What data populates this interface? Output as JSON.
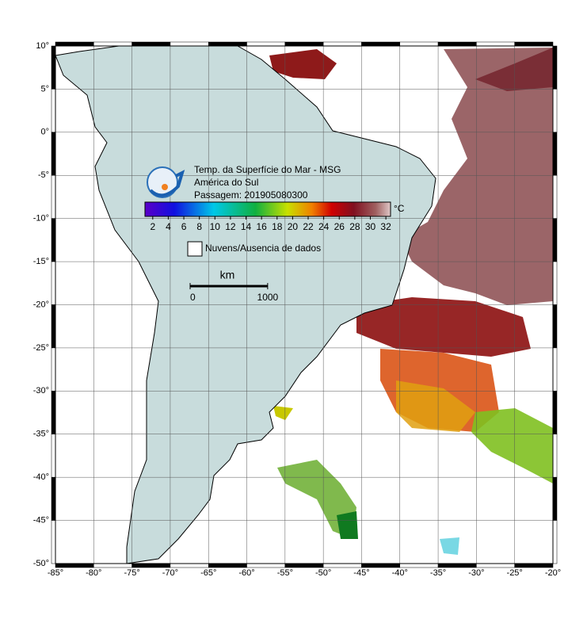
{
  "header": {
    "title_lines": [
      "Temp. da Superfície do Mar - MSG",
      "América do Sul",
      "Passagem: 201905080300"
    ]
  },
  "colorbar": {
    "range": [
      1,
      32.6
    ],
    "ticks": [
      2,
      4,
      6,
      8,
      10,
      12,
      14,
      16,
      18,
      20,
      22,
      24,
      26,
      28,
      30,
      32
    ],
    "unit": "°C"
  },
  "legend": {
    "label": "Nuvens/Ausencia de dados"
  },
  "scale_bar": {
    "unit": "km",
    "ticks": [
      0,
      1000
    ]
  },
  "axes": {
    "xlim": [
      -85,
      -20
    ],
    "ylim": [
      -50,
      10
    ],
    "xticks": [
      {
        "value": -85,
        "label": "-85°"
      },
      {
        "value": -80,
        "label": "-80°"
      },
      {
        "value": -75,
        "label": "-75°"
      },
      {
        "value": -70,
        "label": "-70°"
      },
      {
        "value": -65,
        "label": "-65°"
      },
      {
        "value": -60,
        "label": "-60°"
      },
      {
        "value": -55,
        "label": "-55°"
      },
      {
        "value": -50,
        "label": "-50°"
      },
      {
        "value": -45,
        "label": "-45°"
      },
      {
        "value": -40,
        "label": "-40°"
      },
      {
        "value": -35,
        "label": "-35°"
      },
      {
        "value": -30,
        "label": "-30°"
      },
      {
        "value": -25,
        "label": "-25°"
      },
      {
        "value": -20,
        "label": "-20°"
      }
    ],
    "yticks": [
      {
        "value": 10,
        "label": "10°"
      },
      {
        "value": 5,
        "label": "5°"
      },
      {
        "value": 0,
        "label": "0°"
      },
      {
        "value": -5,
        "label": "-5°"
      },
      {
        "value": -10,
        "label": "-10°"
      },
      {
        "value": -15,
        "label": "-15°"
      },
      {
        "value": -20,
        "label": "-20°"
      },
      {
        "value": -25,
        "label": "-25°"
      },
      {
        "value": -30,
        "label": "-30°"
      },
      {
        "value": -35,
        "label": "-35°"
      },
      {
        "value": -40,
        "label": "-40°"
      },
      {
        "value": -45,
        "label": "-45°"
      },
      {
        "value": -50,
        "label": "-50°"
      }
    ]
  }
}
